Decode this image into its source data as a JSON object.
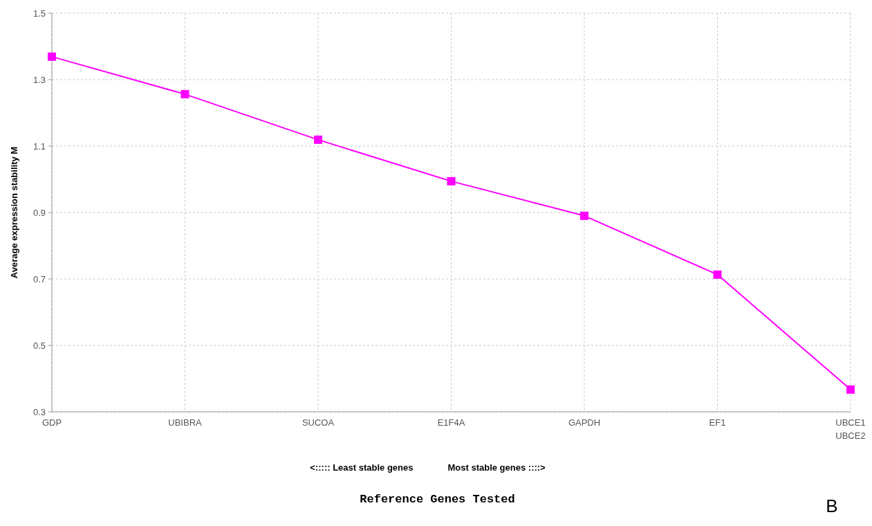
{
  "chart_data": {
    "type": "line",
    "xlabel": "Reference Genes Tested",
    "ylabel": "Average expression stability M",
    "categories": [
      "GDP",
      "UBIBRA",
      "SUCOA",
      "E1F4A",
      "GAPDH",
      "EF1",
      "UBCE1\nUBCE2"
    ],
    "series": [
      {
        "color": "#ff00ff",
        "values": [
          1.369,
          1.256,
          1.119,
          0.994,
          0.89,
          0.713,
          0.367
        ]
      }
    ],
    "ylim": [
      0.3,
      1.5
    ],
    "yticks": [
      0.3,
      0.5,
      0.7,
      0.9,
      1.1,
      1.3,
      1.5
    ],
    "grid": true,
    "marker": "square",
    "line_style": "solid",
    "annotations": [
      "<::::: Least stable genes",
      "Most stable genes ::::>",
      "B"
    ]
  }
}
